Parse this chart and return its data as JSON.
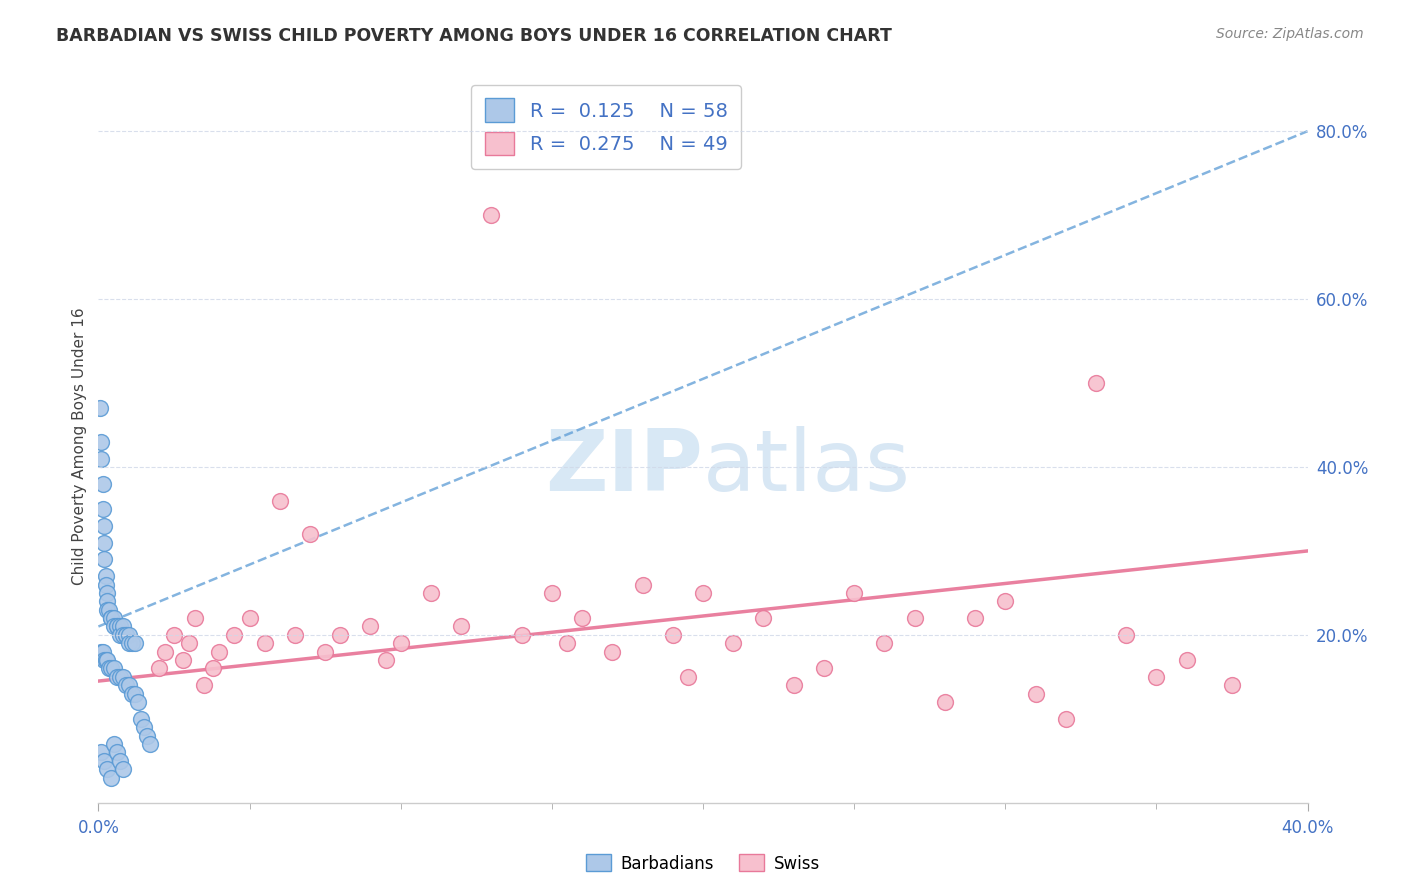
{
  "title": "BARBADIAN VS SWISS CHILD POVERTY AMONG BOYS UNDER 16 CORRELATION CHART",
  "source": "Source: ZipAtlas.com",
  "ylabel": "Child Poverty Among Boys Under 16",
  "xlim": [
    0.0,
    0.4
  ],
  "ylim": [
    0.0,
    0.85
  ],
  "barbadian_face_color": "#adc8e8",
  "barbadian_edge_color": "#5b9bd5",
  "swiss_face_color": "#f7c0ce",
  "swiss_edge_color": "#e8799a",
  "barbadian_trend_color": "#5b9bd5",
  "swiss_trend_color": "#e8799a",
  "watermark_color": "#d8e8f5",
  "R_barbadian": 0.125,
  "N_barbadian": 58,
  "R_swiss": 0.275,
  "N_swiss": 49,
  "legend_color": "#4472c4",
  "barbadian_x": [
    0.0005,
    0.001,
    0.001,
    0.0015,
    0.0015,
    0.002,
    0.002,
    0.002,
    0.0025,
    0.0025,
    0.003,
    0.003,
    0.003,
    0.0035,
    0.004,
    0.004,
    0.005,
    0.005,
    0.006,
    0.006,
    0.007,
    0.007,
    0.008,
    0.008,
    0.009,
    0.009,
    0.01,
    0.01,
    0.011,
    0.012,
    0.001,
    0.0015,
    0.002,
    0.0025,
    0.003,
    0.0035,
    0.004,
    0.005,
    0.006,
    0.007,
    0.008,
    0.009,
    0.01,
    0.011,
    0.012,
    0.013,
    0.014,
    0.015,
    0.016,
    0.017,
    0.001,
    0.002,
    0.003,
    0.004,
    0.005,
    0.006,
    0.007,
    0.008
  ],
  "barbadian_y": [
    0.47,
    0.43,
    0.41,
    0.38,
    0.35,
    0.33,
    0.31,
    0.29,
    0.27,
    0.26,
    0.25,
    0.24,
    0.23,
    0.23,
    0.22,
    0.22,
    0.22,
    0.21,
    0.21,
    0.21,
    0.21,
    0.2,
    0.21,
    0.2,
    0.2,
    0.2,
    0.2,
    0.19,
    0.19,
    0.19,
    0.18,
    0.18,
    0.17,
    0.17,
    0.17,
    0.16,
    0.16,
    0.16,
    0.15,
    0.15,
    0.15,
    0.14,
    0.14,
    0.13,
    0.13,
    0.12,
    0.1,
    0.09,
    0.08,
    0.07,
    0.06,
    0.05,
    0.04,
    0.03,
    0.07,
    0.06,
    0.05,
    0.04
  ],
  "swiss_x": [
    0.02,
    0.022,
    0.025,
    0.028,
    0.03,
    0.032,
    0.035,
    0.038,
    0.04,
    0.045,
    0.05,
    0.055,
    0.06,
    0.065,
    0.07,
    0.075,
    0.08,
    0.09,
    0.095,
    0.1,
    0.11,
    0.12,
    0.13,
    0.14,
    0.15,
    0.155,
    0.16,
    0.17,
    0.18,
    0.19,
    0.195,
    0.2,
    0.21,
    0.22,
    0.23,
    0.24,
    0.25,
    0.26,
    0.27,
    0.28,
    0.29,
    0.3,
    0.31,
    0.32,
    0.33,
    0.34,
    0.35,
    0.36,
    0.375
  ],
  "swiss_y": [
    0.16,
    0.18,
    0.2,
    0.17,
    0.19,
    0.22,
    0.14,
    0.16,
    0.18,
    0.2,
    0.22,
    0.19,
    0.36,
    0.2,
    0.32,
    0.18,
    0.2,
    0.21,
    0.17,
    0.19,
    0.25,
    0.21,
    0.7,
    0.2,
    0.25,
    0.19,
    0.22,
    0.18,
    0.26,
    0.2,
    0.15,
    0.25,
    0.19,
    0.22,
    0.14,
    0.16,
    0.25,
    0.19,
    0.22,
    0.12,
    0.22,
    0.24,
    0.13,
    0.1,
    0.5,
    0.2,
    0.15,
    0.17,
    0.14
  ]
}
